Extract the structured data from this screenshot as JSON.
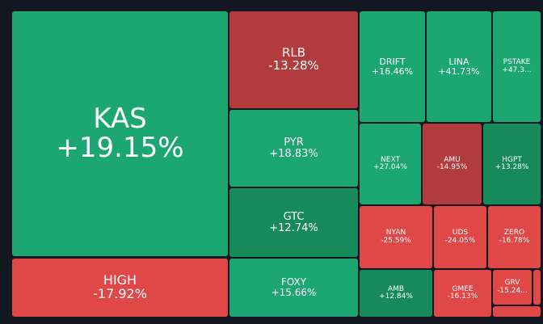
{
  "colors": {
    "background": "#131722",
    "green": "#1ba672",
    "dark_green": "#178a5c",
    "red": "#e04747",
    "dark_red": "#b23b3e"
  },
  "chart_data": {
    "type": "treemap",
    "title": "",
    "tiles": [
      {
        "symbol": "KAS",
        "change": "+19.15%",
        "value": 19.15,
        "color": "green"
      },
      {
        "symbol": "HIGH",
        "change": "-17.92%",
        "value": -17.92,
        "color": "red"
      },
      {
        "symbol": "RLB",
        "change": "-13.28%",
        "value": -13.28,
        "color": "dark_red"
      },
      {
        "symbol": "PYR",
        "change": "+18.83%",
        "value": 18.83,
        "color": "green"
      },
      {
        "symbol": "GTC",
        "change": "+12.74%",
        "value": 12.74,
        "color": "dark_green"
      },
      {
        "symbol": "FOXY",
        "change": "+15.66%",
        "value": 15.66,
        "color": "green"
      },
      {
        "symbol": "DRIFT",
        "change": "+16.46%",
        "value": 16.46,
        "color": "green"
      },
      {
        "symbol": "LINA",
        "change": "+41.73%",
        "value": 41.73,
        "color": "green"
      },
      {
        "symbol": "PSTAKE",
        "change": "+47.3...",
        "value": 47.3,
        "color": "green"
      },
      {
        "symbol": "NEXT",
        "change": "+27.04%",
        "value": 27.04,
        "color": "green"
      },
      {
        "symbol": "AMU",
        "change": "-14.95%",
        "value": -14.95,
        "color": "dark_red"
      },
      {
        "symbol": "HGPT",
        "change": "+13.28%",
        "value": 13.28,
        "color": "dark_green"
      },
      {
        "symbol": "NYAN",
        "change": "-25.59%",
        "value": -25.59,
        "color": "red"
      },
      {
        "symbol": "UDS",
        "change": "-24.05%",
        "value": -24.05,
        "color": "red"
      },
      {
        "symbol": "ZERO",
        "change": "-16.78%",
        "value": -16.78,
        "color": "red"
      },
      {
        "symbol": "AMB",
        "change": "+12.84%",
        "value": 12.84,
        "color": "dark_green"
      },
      {
        "symbol": "GMEE",
        "change": "-16.13%",
        "value": -16.13,
        "color": "red"
      },
      {
        "symbol": "GRV",
        "change": "-15.24...",
        "value": -15.24,
        "color": "red"
      },
      {
        "symbol": "",
        "change": "",
        "color": "red"
      },
      {
        "symbol": "",
        "change": "",
        "color": "red"
      }
    ]
  }
}
